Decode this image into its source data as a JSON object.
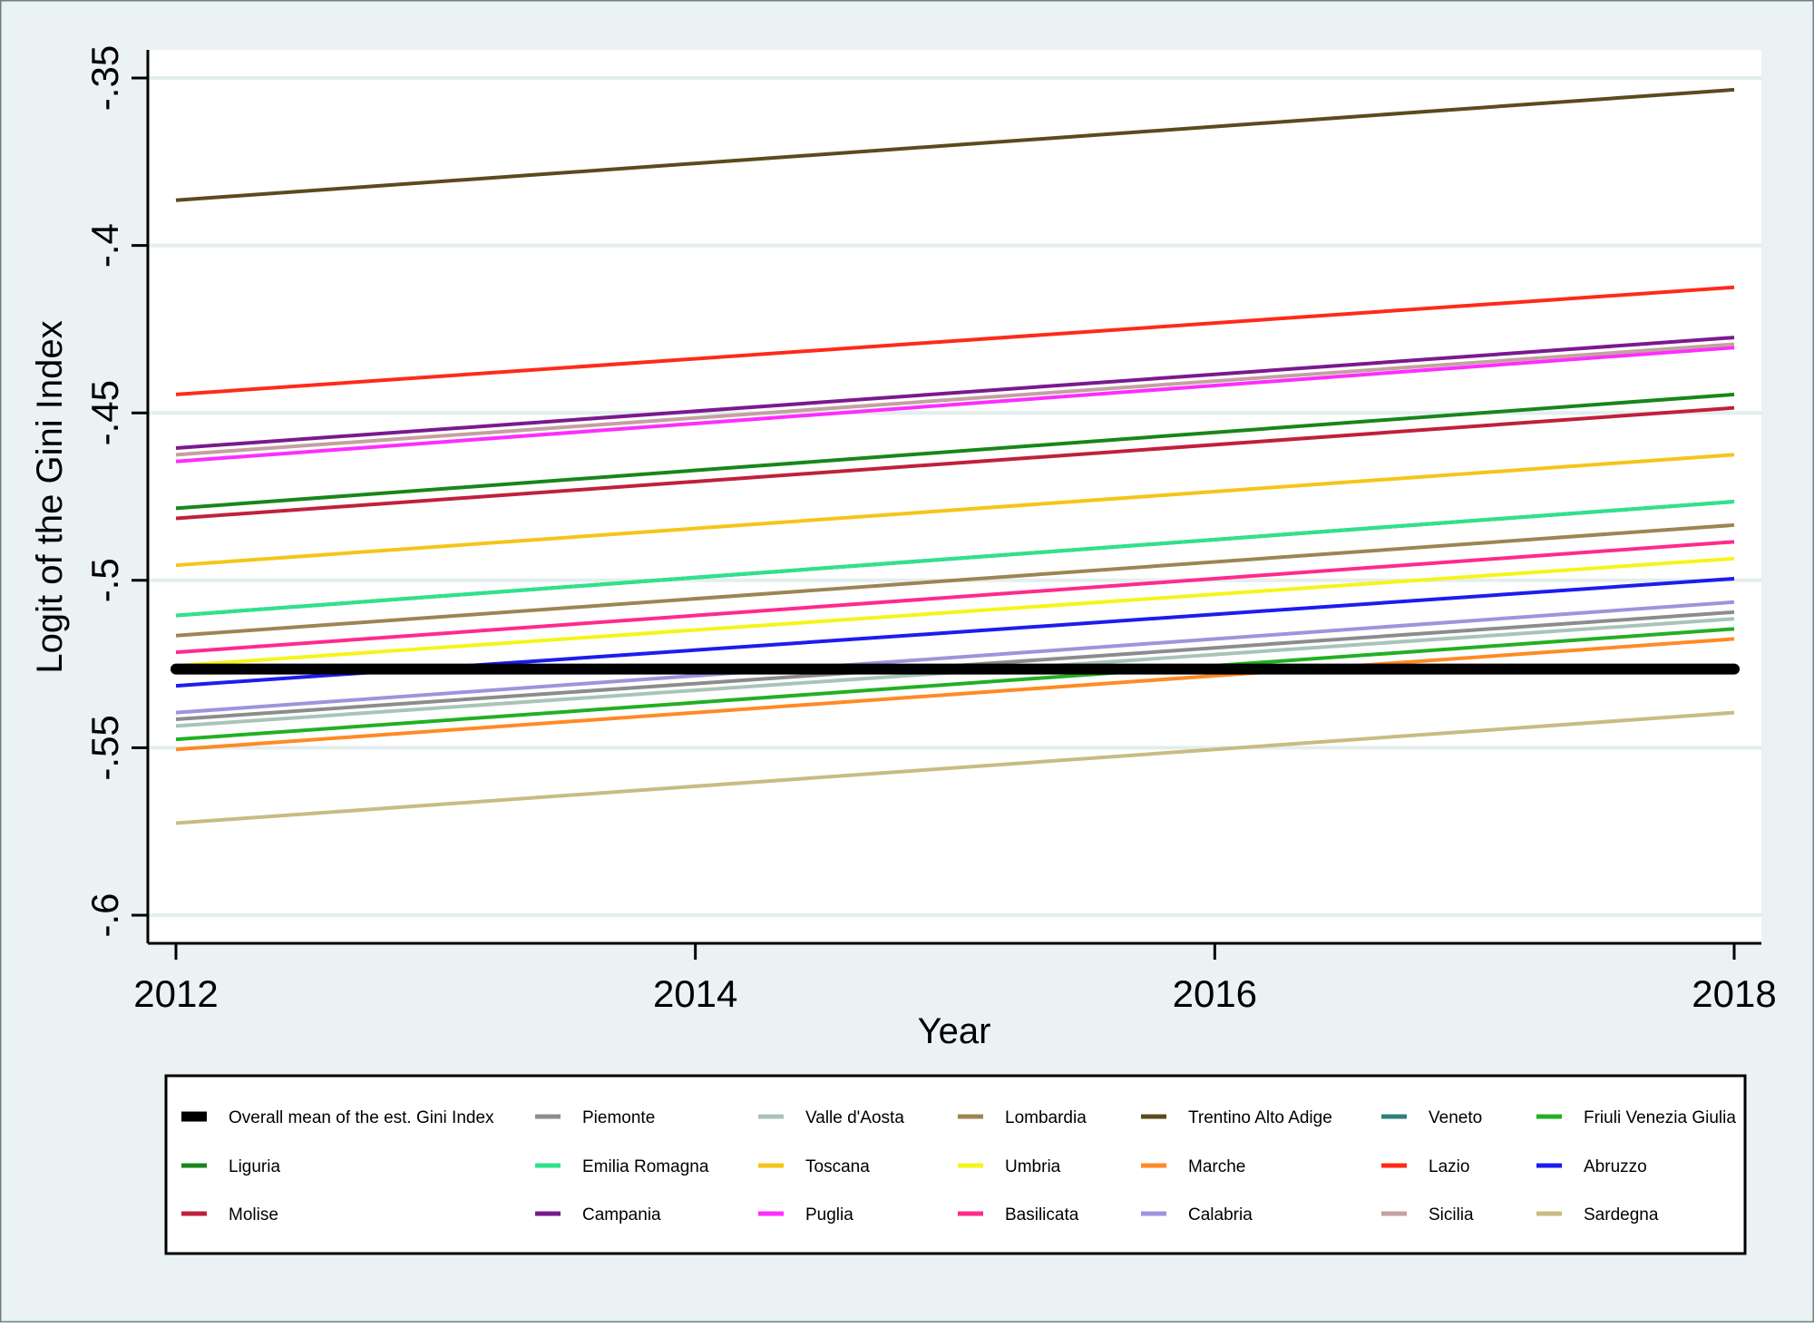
{
  "chart_data": {
    "type": "line",
    "title": "",
    "xlabel": "Year",
    "ylabel": "Logit of the Gini Index",
    "xlim": [
      2012,
      2018
    ],
    "ylim": [
      -0.6,
      -0.35
    ],
    "x_ticks": [
      2012,
      2014,
      2016,
      2018
    ],
    "x_tick_labels": [
      "2012",
      "2014",
      "2016",
      "2018"
    ],
    "y_ticks": [
      -0.6,
      -0.55,
      -0.5,
      -0.45,
      -0.4,
      -0.35
    ],
    "y_tick_labels": [
      "-.6",
      "-.55",
      "-.5",
      "-.45",
      "-.4",
      "-.35"
    ],
    "grid": "horizontal",
    "legend_position": "bottom",
    "background_color": "#eaf2f3",
    "plot_background_color": "#ffffff",
    "x": [
      2012,
      2018
    ],
    "series": [
      {
        "name": "Overall mean of the est. Gini Index",
        "color": "#000000",
        "values": [
          -0.5265,
          -0.5265
        ]
      },
      {
        "name": "Piemonte",
        "color": "#8c8c8c",
        "values": [
          -0.5415,
          -0.5095
        ]
      },
      {
        "name": "Valle d'Aosta",
        "color": "#a8c4b8",
        "values": [
          -0.5435,
          -0.5115
        ]
      },
      {
        "name": "Lombardia",
        "color": "#9e8454",
        "values": [
          -0.5165,
          -0.4835
        ]
      },
      {
        "name": "Trentino Alto Adige",
        "color": "#5c4a1e",
        "values": [
          -0.3865,
          -0.3535
        ]
      },
      {
        "name": "Veneto",
        "color": "#2e7f7a",
        "values": [
          -0.5105,
          -0.4765
        ]
      },
      {
        "name": "Friuli Venezia Giulia",
        "color": "#22b022",
        "values": [
          -0.5475,
          -0.5145
        ]
      },
      {
        "name": "Liguria",
        "color": "#18861b",
        "values": [
          -0.4785,
          -0.4445
        ]
      },
      {
        "name": "Emilia Romagna",
        "color": "#2ee38a",
        "values": [
          -0.5105,
          -0.4765
        ]
      },
      {
        "name": "Toscana",
        "color": "#f5c518",
        "values": [
          -0.4955,
          -0.4625
        ]
      },
      {
        "name": "Umbria",
        "color": "#f5f51a",
        "values": [
          -0.5255,
          -0.4935
        ]
      },
      {
        "name": "Marche",
        "color": "#ff8a24",
        "values": [
          -0.5505,
          -0.5175
        ]
      },
      {
        "name": "Lazio",
        "color": "#ff2a1a",
        "values": [
          -0.4445,
          -0.4125
        ]
      },
      {
        "name": "Abruzzo",
        "color": "#1c1cf0",
        "values": [
          -0.5315,
          -0.4995
        ]
      },
      {
        "name": "Molise",
        "color": "#c0203c",
        "values": [
          -0.4815,
          -0.4485
        ]
      },
      {
        "name": "Campania",
        "color": "#7a1a8e",
        "values": [
          -0.4605,
          -0.4275
        ]
      },
      {
        "name": "Puglia",
        "color": "#ff2cff",
        "values": [
          -0.4645,
          -0.4305
        ]
      },
      {
        "name": "Basilicata",
        "color": "#ff2a8c",
        "values": [
          -0.5215,
          -0.4885
        ]
      },
      {
        "name": "Calabria",
        "color": "#9e94dc",
        "values": [
          -0.5395,
          -0.5065
        ]
      },
      {
        "name": "Sicilia",
        "color": "#c4a0a0",
        "values": [
          -0.4625,
          -0.4295
        ]
      },
      {
        "name": "Sardegna",
        "color": "#c8bc84",
        "values": [
          -0.5725,
          -0.5395
        ]
      }
    ]
  }
}
